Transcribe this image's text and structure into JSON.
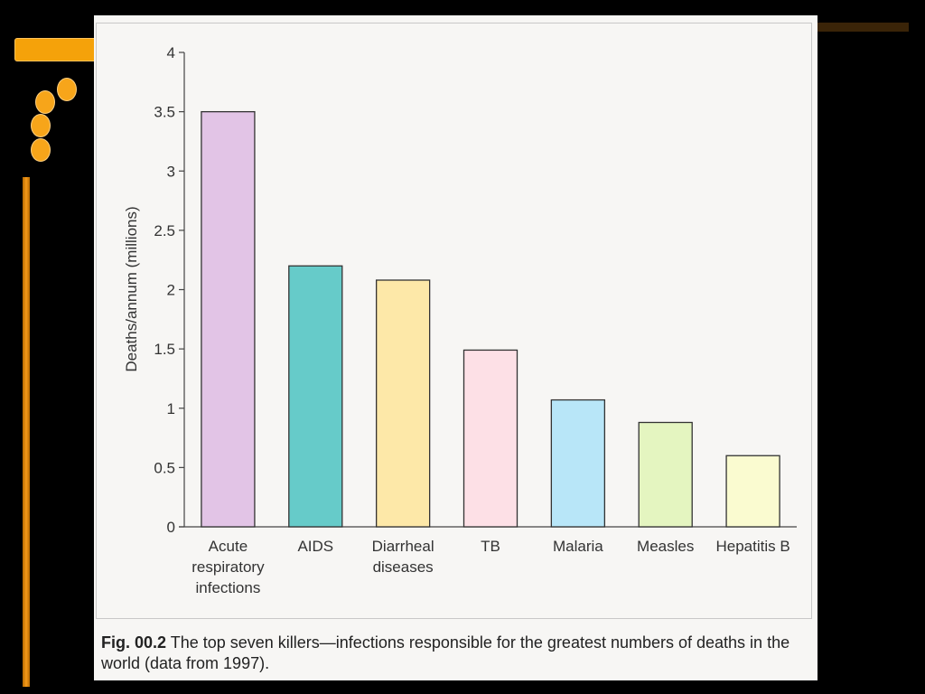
{
  "chart_data": {
    "type": "bar",
    "categories": [
      [
        "Acute",
        "respiratory",
        "infections"
      ],
      [
        "AIDS"
      ],
      [
        "Diarrheal",
        "diseases"
      ],
      [
        "TB"
      ],
      [
        "Malaria"
      ],
      [
        "Measles"
      ],
      [
        "Hepatitis B"
      ]
    ],
    "values": [
      3.5,
      2.2,
      2.08,
      1.49,
      1.07,
      0.88,
      0.6
    ],
    "colors": [
      "#e2c4e6",
      "#66cbc9",
      "#fde8a8",
      "#fde0e6",
      "#b8e6f8",
      "#e4f5c0",
      "#fafbd0"
    ],
    "ylabel": "Deaths/annum (millions)",
    "ylim": [
      0,
      4
    ],
    "yticks": [
      "0",
      "0.5",
      "1",
      "1.5",
      "2",
      "2.5",
      "3",
      "3.5",
      "4"
    ],
    "grid": false
  },
  "caption": {
    "fig_label": "Fig. 00.2",
    "text": "The top seven killers—infections responsible for the greatest numbers of deaths in the world (data from 1997)."
  }
}
